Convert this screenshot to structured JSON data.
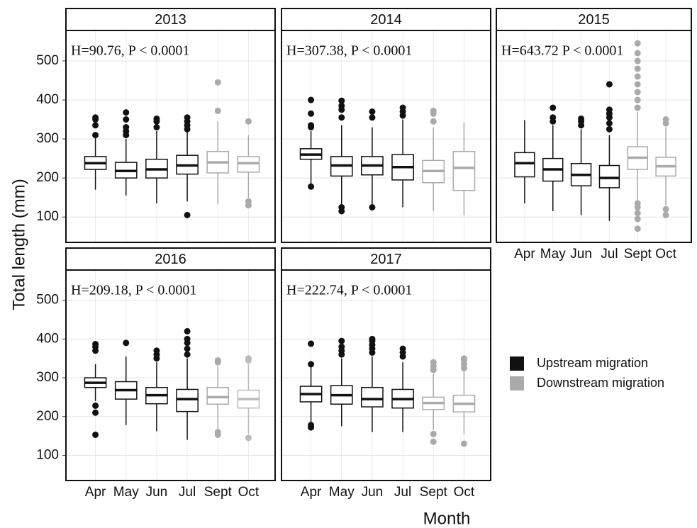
{
  "axis_labels": {
    "y": "Total length (mm)",
    "x": "Month"
  },
  "legend": [
    {
      "name": "Upstream migration",
      "color": "#111111"
    },
    {
      "name": "Downstream migration",
      "color": "#aaaaaa"
    }
  ],
  "chart_data": [
    {
      "type": "box",
      "title": "2013",
      "annotation": "H=90.76, P < 0.0001",
      "categories": [
        "Apr",
        "May",
        "Jun",
        "Jul",
        "Sept",
        "Oct"
      ],
      "colors": [
        "#111111",
        "#111111",
        "#111111",
        "#111111",
        "#aaaaaa",
        "#aaaaaa"
      ],
      "whislo": [
        170,
        155,
        135,
        140,
        133,
        150
      ],
      "q1": [
        222,
        200,
        200,
        210,
        213,
        215
      ],
      "median": [
        238,
        218,
        222,
        232,
        240,
        238
      ],
      "q3": [
        255,
        240,
        248,
        258,
        268,
        255
      ],
      "whishi": [
        305,
        300,
        320,
        320,
        345,
        310
      ],
      "outliers": [
        [
          310,
          335,
          350,
          355
        ],
        [
          310,
          320,
          330,
          350,
          368
        ],
        [
          330,
          345,
          352
        ],
        [
          105,
          325,
          335,
          345,
          355
        ],
        [
          372,
          445
        ],
        [
          130,
          140,
          345
        ]
      ],
      "ylim": [
        35,
        578
      ],
      "yticks": [
        100,
        200,
        300,
        400,
        500
      ],
      "grid": true
    },
    {
      "type": "box",
      "title": "2014",
      "annotation": "H=307.38, P < 0.0001",
      "categories": [
        "Apr",
        "May",
        "Jun",
        "Jul",
        "Sept",
        "Oct"
      ],
      "colors": [
        "#111111",
        "#111111",
        "#111111",
        "#111111",
        "#aaaaaa",
        "#aaaaaa"
      ],
      "whislo": [
        185,
        125,
        130,
        125,
        115,
        105
      ],
      "q1": [
        248,
        205,
        208,
        195,
        188,
        168
      ],
      "median": [
        260,
        232,
        232,
        228,
        218,
        226
      ],
      "q3": [
        275,
        255,
        255,
        260,
        245,
        268
      ],
      "whishi": [
        320,
        335,
        330,
        350,
        330,
        342
      ],
      "outliers": [
        [
          178,
          330,
          335,
          365,
          400
        ],
        [
          115,
          125,
          355,
          375,
          385,
          398
        ],
        [
          125,
          355,
          370
        ],
        [
          360,
          370,
          380
        ],
        [
          345,
          365,
          372
        ],
        []
      ],
      "ylim": [
        35,
        578
      ],
      "yticks": [
        100,
        200,
        300,
        400,
        500
      ],
      "grid": true
    },
    {
      "type": "box",
      "title": "2015",
      "annotation": "H=643.72 P < 0.0001",
      "categories": [
        "Apr",
        "May",
        "Jun",
        "Jul",
        "Sept",
        "Oct"
      ],
      "colors": [
        "#111111",
        "#111111",
        "#111111",
        "#111111",
        "#aaaaaa",
        "#aaaaaa"
      ],
      "whislo": [
        135,
        115,
        105,
        90,
        140,
        130
      ],
      "q1": [
        203,
        192,
        180,
        175,
        222,
        205
      ],
      "median": [
        238,
        222,
        208,
        200,
        252,
        230
      ],
      "q3": [
        265,
        250,
        237,
        232,
        280,
        253
      ],
      "whishi": [
        348,
        335,
        325,
        310,
        370,
        330
      ],
      "outliers": [
        [],
        [
          345,
          355,
          380
        ],
        [
          335,
          345,
          352
        ],
        [
          325,
          340,
          355,
          365,
          375,
          440
        ],
        [
          70,
          95,
          110,
          125,
          135,
          380,
          400,
          420,
          440,
          460,
          480,
          500,
          520,
          545
        ],
        [
          105,
          120,
          340,
          350
        ]
      ],
      "ylim": [
        35,
        578
      ],
      "yticks": [
        100,
        200,
        300,
        400,
        500
      ],
      "grid": true
    },
    {
      "type": "box",
      "title": "2016",
      "annotation": "H=209.18, P < 0.0001",
      "categories": [
        "Apr",
        "May",
        "Jun",
        "Jul",
        "Sept",
        "Oct"
      ],
      "colors": [
        "#111111",
        "#111111",
        "#111111",
        "#111111",
        "#aaaaaa",
        "#bbbbbb"
      ],
      "whislo": [
        240,
        178,
        162,
        140,
        165,
        155
      ],
      "q1": [
        275,
        245,
        233,
        213,
        232,
        222
      ],
      "median": [
        287,
        268,
        255,
        245,
        250,
        245
      ],
      "q3": [
        300,
        290,
        275,
        270,
        275,
        268
      ],
      "whishi": [
        335,
        355,
        340,
        350,
        330,
        335
      ],
      "outliers": [
        [
          153,
          210,
          228,
          370,
          380,
          387
        ],
        [
          390
        ],
        [
          350,
          360,
          370
        ],
        [
          360,
          375,
          390,
          400,
          420
        ],
        [
          153,
          160,
          340,
          345
        ],
        [
          145,
          345,
          350
        ]
      ],
      "ylim": [
        35,
        578
      ],
      "yticks": [
        100,
        200,
        300,
        400,
        500
      ],
      "grid": true
    },
    {
      "type": "box",
      "title": "2017",
      "annotation": "H=222.74, P < 0.0001",
      "categories": [
        "Apr",
        "May",
        "Jun",
        "Jul",
        "Sept",
        "Oct"
      ],
      "colors": [
        "#111111",
        "#111111",
        "#111111",
        "#111111",
        "#aaaaaa",
        "#aaaaaa"
      ],
      "whislo": [
        185,
        175,
        160,
        160,
        165,
        155
      ],
      "q1": [
        238,
        232,
        225,
        222,
        218,
        212
      ],
      "median": [
        258,
        255,
        245,
        245,
        235,
        233
      ],
      "q3": [
        278,
        280,
        275,
        270,
        250,
        255
      ],
      "whishi": [
        330,
        350,
        355,
        340,
        310,
        320
      ],
      "outliers": [
        [
          172,
          178,
          335,
          388
        ],
        [
          360,
          370,
          380,
          395
        ],
        [
          365,
          375,
          385,
          395,
          400
        ],
        [
          355,
          365,
          375
        ],
        [
          135,
          155,
          320,
          330,
          340
        ],
        [
          130,
          325,
          335,
          345,
          350
        ]
      ],
      "ylim": [
        35,
        578
      ],
      "yticks": [
        100,
        200,
        300,
        400,
        500
      ],
      "grid": true
    }
  ]
}
